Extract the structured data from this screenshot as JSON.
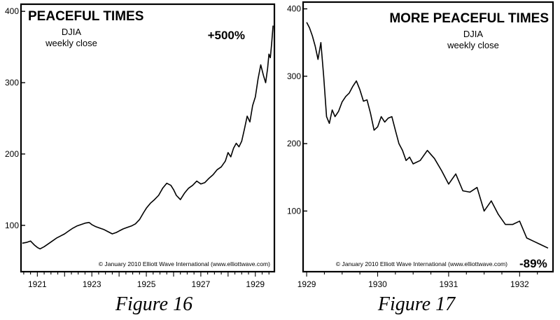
{
  "chart_data": [
    {
      "type": "line",
      "title": "PEACEFUL TIMES",
      "subtitle": [
        "DJIA",
        "weekly close"
      ],
      "annotation": "+500%",
      "credit": "© January 2010 Elliott Wave International (www.elliottwave.com)",
      "figure_caption": "Figure 16",
      "ylabel": "",
      "xlabel": "",
      "ylim": [
        35,
        410
      ],
      "xlim": [
        1920.4,
        1929.7
      ],
      "yticks": [
        100,
        200,
        300,
        400
      ],
      "xticks": [
        1921,
        1923,
        1925,
        1927,
        1929
      ],
      "xtick_labels": [
        "1921",
        "1923",
        "1925",
        "1927",
        "1929"
      ],
      "grid": false,
      "series": [
        {
          "x": [
            1920.45,
            1920.6,
            1920.75,
            1920.9,
            1921.0,
            1921.1,
            1921.25,
            1921.4,
            1921.55,
            1921.7,
            1921.85,
            1922.0,
            1922.15,
            1922.3,
            1922.45,
            1922.6,
            1922.75,
            1922.9,
            1923.0,
            1923.15,
            1923.3,
            1923.45,
            1923.6,
            1923.75,
            1923.9,
            1924.0,
            1924.15,
            1924.3,
            1924.45,
            1924.6,
            1924.75,
            1924.9,
            1925.0,
            1925.15,
            1925.3,
            1925.45,
            1925.6,
            1925.75,
            1925.9,
            1926.0,
            1926.1,
            1926.25,
            1926.4,
            1926.55,
            1926.7,
            1926.85,
            1927.0,
            1927.15,
            1927.3,
            1927.45,
            1927.6,
            1927.75,
            1927.9,
            1928.0,
            1928.1,
            1928.2,
            1928.3,
            1928.4,
            1928.5,
            1928.6,
            1928.7,
            1928.8,
            1928.9,
            1929.0,
            1929.1,
            1929.2,
            1929.3,
            1929.38,
            1929.45,
            1929.5,
            1929.55,
            1929.6,
            1929.65
          ],
          "values": [
            75,
            76,
            78,
            72,
            69,
            67,
            70,
            74,
            78,
            82,
            85,
            88,
            92,
            96,
            99,
            101,
            103,
            104,
            101,
            98,
            96,
            94,
            91,
            88,
            90,
            92,
            95,
            97,
            99,
            102,
            108,
            118,
            124,
            131,
            136,
            142,
            152,
            159,
            156,
            150,
            142,
            136,
            145,
            152,
            156,
            162,
            158,
            160,
            166,
            171,
            178,
            182,
            190,
            202,
            196,
            208,
            215,
            210,
            218,
            235,
            253,
            245,
            268,
            280,
            305,
            325,
            310,
            300,
            320,
            340,
            335,
            355,
            380
          ]
        }
      ]
    },
    {
      "type": "line",
      "title": "MORE PEACEFUL TIMES",
      "subtitle": [
        "DJIA",
        "weekly close"
      ],
      "annotation": "-89%",
      "credit": "© January 2010 Elliott Wave International (www.elliottwave.com)",
      "figure_caption": "Figure 17",
      "ylabel": "",
      "xlabel": "",
      "ylim": [
        10,
        410
      ],
      "xlim": [
        1928.95,
        1932.47
      ],
      "yticks": [
        100,
        200,
        300,
        400
      ],
      "xticks": [
        1929,
        1930,
        1931,
        1932
      ],
      "xtick_labels": [
        "1929",
        "1930",
        "1931",
        "1932"
      ],
      "grid": false,
      "series": [
        {
          "x": [
            1929.0,
            1929.04,
            1929.08,
            1929.12,
            1929.16,
            1929.2,
            1929.24,
            1929.28,
            1929.32,
            1929.36,
            1929.4,
            1929.45,
            1929.5,
            1929.55,
            1929.6,
            1929.65,
            1929.7,
            1929.75,
            1929.8,
            1929.85,
            1929.9,
            1929.95,
            1930.0,
            1930.05,
            1930.1,
            1930.15,
            1930.2,
            1930.25,
            1930.3,
            1930.35,
            1930.4,
            1930.45,
            1930.5,
            1930.6,
            1930.7,
            1930.8,
            1930.9,
            1931.0,
            1931.1,
            1931.2,
            1931.3,
            1931.4,
            1931.5,
            1931.6,
            1931.7,
            1931.8,
            1931.9,
            1932.0,
            1932.1,
            1932.2,
            1932.3,
            1932.4
          ],
          "values": [
            380,
            372,
            360,
            345,
            325,
            350,
            300,
            240,
            230,
            250,
            240,
            248,
            262,
            270,
            275,
            285,
            293,
            280,
            263,
            265,
            245,
            220,
            225,
            240,
            232,
            238,
            240,
            220,
            200,
            190,
            175,
            180,
            170,
            175,
            190,
            178,
            160,
            140,
            155,
            130,
            128,
            135,
            100,
            115,
            95,
            80,
            80,
            85,
            60,
            55,
            50,
            45
          ]
        }
      ]
    }
  ]
}
